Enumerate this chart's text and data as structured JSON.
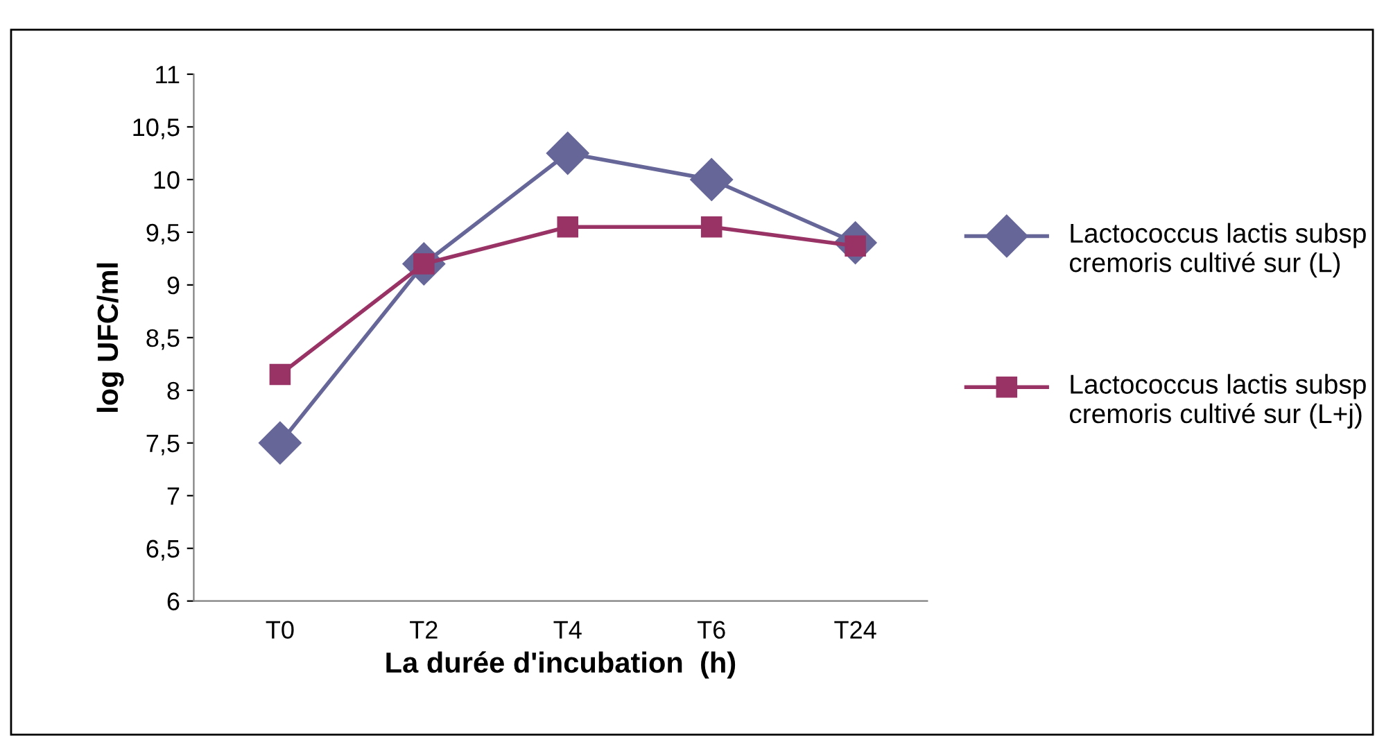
{
  "chart_data": {
    "type": "line",
    "xlabel": "La durée d'incubation  (h)",
    "ylabel": "log UFC/ml",
    "categories": [
      "T0",
      "T2",
      "T4",
      "T6",
      "T24"
    ],
    "series": [
      {
        "name": "Lactococcus lactis subsp cremoris cultivé sur (L)",
        "color": "#666699",
        "marker": "diamond",
        "values": [
          7.5,
          9.2,
          10.25,
          10.0,
          9.4
        ]
      },
      {
        "name": "Lactococcus lactis subsp cremoris cultivé sur (L+j)",
        "color": "#993366",
        "marker": "square",
        "values": [
          8.15,
          9.2,
          9.55,
          9.55,
          9.37
        ]
      }
    ],
    "ylim": [
      6,
      11
    ],
    "yticks": [
      6,
      {
        "value": 6.5,
        "label": "6,5"
      },
      7,
      {
        "value": 7.5,
        "label": "7,5"
      },
      8,
      {
        "value": 8.5,
        "label": "8,5"
      },
      9,
      {
        "value": 9.5,
        "label": "9,5"
      },
      10,
      {
        "value": 10.5,
        "label": "10,5"
      },
      11
    ],
    "grid": false,
    "legend": "right"
  }
}
